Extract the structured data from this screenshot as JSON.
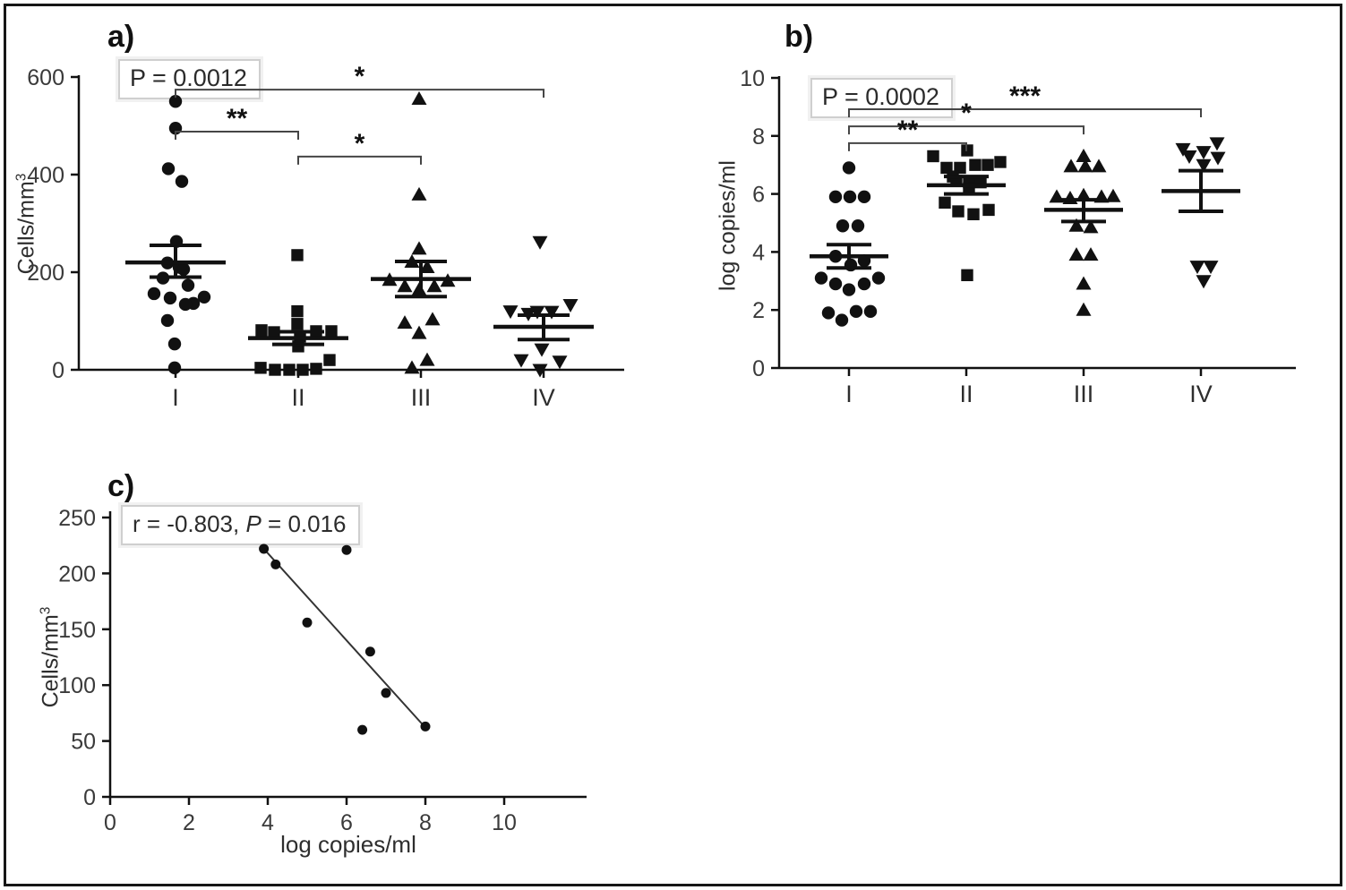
{
  "panels": {
    "a": {
      "letter": "a)",
      "annotation": {
        "text": "P = 0.0012",
        "italic_p": false
      },
      "ylabel": {
        "base": "Cells/mm",
        "sup": "3"
      }
    },
    "b": {
      "letter": "b)",
      "annotation": {
        "text": "P = 0.0002",
        "italic_p": false
      },
      "ylabel": {
        "base": "log copies/ml",
        "sup": ""
      }
    },
    "c": {
      "letter": "c)",
      "annotation": {
        "text": "r = -0.803, P = 0.016",
        "italic_p": true
      },
      "ylabel": {
        "base": "Cells/mm",
        "sup": "3"
      },
      "xlabel": "log copies/ml"
    }
  },
  "chart_data": [
    {
      "id": "a",
      "type": "scatter",
      "subtype": "grouped-dot-plot-with-mean-sem",
      "title": "",
      "xlabel": "",
      "ylabel": "Cells/mm3",
      "ylim": [
        0,
        600
      ],
      "yticks": [
        0,
        200,
        400,
        600
      ],
      "categories": [
        "I",
        "II",
        "III",
        "IV"
      ],
      "annotation": "P = 0.0012",
      "grid": false,
      "groups": [
        {
          "category": "I",
          "marker": "circle",
          "mean": 220,
          "sem_upper": 255,
          "sem_lower": 190,
          "values": [
            550,
            495,
            412,
            386,
            263,
            219,
            210,
            206,
            188,
            173,
            156,
            149,
            147,
            136,
            134,
            101,
            53,
            4
          ],
          "jitter": [
            0,
            0,
            -8,
            7,
            1,
            -9,
            4,
            9,
            -14,
            14,
            -24,
            32,
            -6,
            20,
            11,
            -9,
            -1,
            -1
          ]
        },
        {
          "category": "II",
          "marker": "square",
          "mean": 65,
          "sem_upper": 78,
          "sem_lower": 52,
          "values": [
            235,
            120,
            94,
            81,
            79,
            79,
            77,
            68,
            48,
            20,
            4,
            2,
            0,
            0,
            0
          ],
          "jitter": [
            -1,
            -1,
            -1,
            -41,
            20,
            37,
            -27,
            2,
            0,
            35,
            -42,
            20,
            -26,
            -10,
            5
          ]
        },
        {
          "category": "III",
          "marker": "triangle-up",
          "mean": 186,
          "sem_upper": 222,
          "sem_lower": 150,
          "values": [
            555,
            359,
            248,
            221,
            210,
            184,
            182,
            171,
            171,
            164,
            103,
            96,
            75,
            20,
            4
          ],
          "jitter": [
            -2,
            -2,
            -2,
            -10,
            7,
            -35,
            30,
            -18,
            15,
            -2,
            13,
            -18,
            -2,
            7,
            -10
          ]
        },
        {
          "category": "IV",
          "marker": "triangle-down",
          "mean": 88,
          "sem_upper": 112,
          "sem_lower": 62,
          "values": [
            262,
            133,
            120,
            119,
            119,
            115,
            42,
            20,
            17,
            0
          ],
          "jitter": [
            -4,
            30,
            -37,
            -7,
            9,
            -17,
            -2,
            -25,
            18,
            -4
          ]
        }
      ],
      "brackets": [
        {
          "from": "I",
          "to": "IV",
          "label": "*",
          "y_value": 574
        },
        {
          "from": "I",
          "to": "II",
          "label": "**",
          "y_value": 488
        },
        {
          "from": "II",
          "to": "III",
          "label": "*",
          "y_value": 437
        }
      ]
    },
    {
      "id": "b",
      "type": "scatter",
      "subtype": "grouped-dot-plot-with-mean-sem",
      "title": "",
      "xlabel": "",
      "ylabel": "log copies/ml",
      "ylim": [
        0,
        10
      ],
      "yticks": [
        0,
        2,
        4,
        6,
        8,
        10
      ],
      "categories": [
        "I",
        "II",
        "III",
        "IV"
      ],
      "annotation": "P = 0.0002",
      "grid": false,
      "groups": [
        {
          "category": "I",
          "marker": "circle",
          "mean": 3.85,
          "sem_upper": 4.25,
          "sem_lower": 3.45,
          "values": [
            6.9,
            5.9,
            5.9,
            5.9,
            4.9,
            4.9,
            3.85,
            3.7,
            3.55,
            3.1,
            3.1,
            2.9,
            2.9,
            2.7,
            1.9,
            1.65,
            1.95,
            1.95
          ],
          "jitter": [
            0,
            -15,
            1,
            17,
            -7,
            10,
            -15,
            17,
            2,
            -31,
            33,
            -15,
            17,
            0,
            -23,
            -8,
            8,
            24
          ]
        },
        {
          "category": "II",
          "marker": "square",
          "mean": 6.3,
          "sem_upper": 6.6,
          "sem_lower": 6.0,
          "values": [
            7.3,
            7.5,
            6.9,
            6.9,
            7.0,
            7.0,
            7.1,
            6.6,
            6.45,
            6.4,
            6.4,
            6.2,
            5.7,
            5.4,
            5.3,
            5.45,
            3.2
          ],
          "jitter": [
            -37,
            1,
            -22,
            -7,
            10,
            24,
            38,
            -15,
            -11,
            3,
            16,
            3,
            -24,
            -9,
            8,
            25,
            1
          ]
        },
        {
          "category": "III",
          "marker": "triangle-up",
          "mean": 5.45,
          "sem_upper": 5.8,
          "sem_lower": 5.05,
          "values": [
            7.3,
            6.95,
            6.95,
            6.95,
            5.9,
            5.85,
            5.9,
            5.92,
            5.95,
            4.9,
            4.85,
            3.9,
            3.9,
            2.9,
            2.0
          ],
          "jitter": [
            0,
            -14,
            2,
            17,
            -30,
            -15,
            20,
            33,
            0,
            -8,
            8,
            -8,
            8,
            0,
            0
          ]
        },
        {
          "category": "IV",
          "marker": "triangle-down",
          "mean": 6.1,
          "sem_upper": 6.8,
          "sem_lower": 5.4,
          "values": [
            7.55,
            7.3,
            7.45,
            7.75,
            7.25,
            7.0,
            3.5,
            3.5,
            3.0
          ],
          "jitter": [
            -20,
            -13,
            3,
            18,
            19,
            3,
            -4,
            11,
            3
          ]
        }
      ],
      "brackets": [
        {
          "from": "I",
          "to": "IV",
          "label": "***",
          "y_value": 8.92
        },
        {
          "from": "I",
          "to": "III",
          "label": "*",
          "y_value": 8.33
        },
        {
          "from": "I",
          "to": "II",
          "label": "**",
          "y_value": 7.75
        }
      ]
    },
    {
      "id": "c",
      "type": "scatter",
      "subtype": "correlation-with-regression-line",
      "title": "",
      "xlabel": "log copies/ml",
      "ylabel": "Cells/mm3",
      "xlim": [
        0,
        10
      ],
      "ylim": [
        0,
        250
      ],
      "xticks": [
        0,
        2,
        4,
        6,
        8,
        10
      ],
      "yticks": [
        0,
        50,
        100,
        150,
        200,
        250
      ],
      "annotation": "r = -0.803, P = 0.016",
      "grid": false,
      "points": [
        [
          3.9,
          222
        ],
        [
          4.2,
          208
        ],
        [
          5.0,
          156
        ],
        [
          6.0,
          221
        ],
        [
          6.6,
          130
        ],
        [
          7.0,
          93
        ],
        [
          6.4,
          60
        ],
        [
          8.0,
          63
        ]
      ],
      "regression_line": {
        "x1": 3.9,
        "y1": 222,
        "x2": 8.0,
        "y2": 62
      }
    }
  ]
}
